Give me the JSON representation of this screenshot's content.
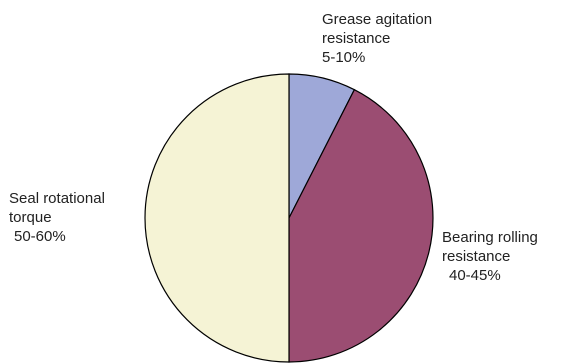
{
  "chart_data": {
    "type": "pie",
    "slices": [
      {
        "label_lines": [
          "Grease agitation",
          "resistance",
          "5-10%"
        ],
        "value": 7.5,
        "color": "#9ea8d8"
      },
      {
        "label_lines": [
          "Bearing rolling",
          "resistance",
          "40-45%"
        ],
        "value": 42.5,
        "color": "#9b4d72"
      },
      {
        "label_lines": [
          "Seal rotational",
          "torque",
          "50-60%"
        ],
        "value": 50,
        "color": "#f5f3d5"
      }
    ]
  }
}
